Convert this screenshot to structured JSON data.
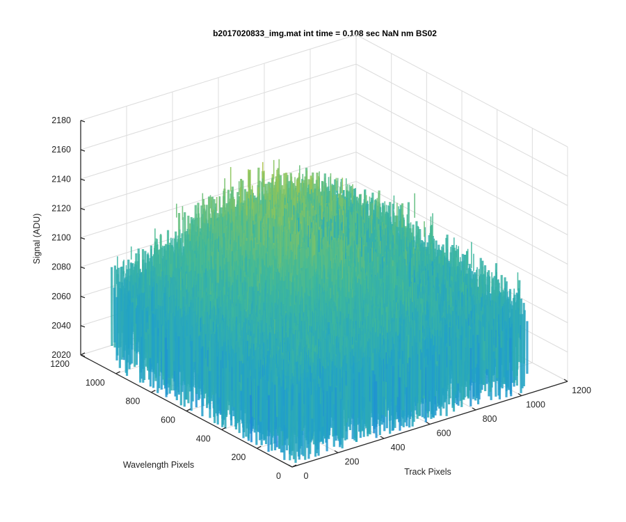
{
  "chart_data": {
    "type": "surface",
    "title": "b2017020833_img.mat int time = 0.108 sec  NaN nm BS02",
    "zlabel": "Signal (ADU)",
    "xlabel": "Track Pixels",
    "ylabel": "Wavelength Pixels",
    "xlim": [
      0,
      1200
    ],
    "ylim": [
      0,
      1200
    ],
    "zlim": [
      2020,
      2180
    ],
    "x_ticks": [
      0,
      200,
      400,
      600,
      800,
      1000,
      1200
    ],
    "y_ticks": [
      0,
      200,
      400,
      600,
      800,
      1000,
      1200
    ],
    "z_ticks": [
      2020,
      2040,
      2060,
      2080,
      2100,
      2120,
      2140,
      2160,
      2180
    ],
    "x_tick_labels": [
      "0",
      "200",
      "400",
      "600",
      "800",
      "1000",
      "1200"
    ],
    "y_tick_labels": [
      "0",
      "200",
      "400",
      "600",
      "800",
      "1000",
      "1200"
    ],
    "z_tick_labels": [
      "2020",
      "2040",
      "2060",
      "2080",
      "2100",
      "2120",
      "2140",
      "2160",
      "2180"
    ],
    "surface_extent": {
      "x": [
        0,
        1024
      ],
      "y": [
        0,
        1024
      ]
    },
    "surface_baseline_adu": 2085,
    "surface_peak_adu": 2170,
    "surface_min_adu": 2040,
    "colormap": [
      "#1f7ae0",
      "#21a1c8",
      "#3fb89a",
      "#8fc55a",
      "#e3c23a"
    ],
    "grid": true
  }
}
